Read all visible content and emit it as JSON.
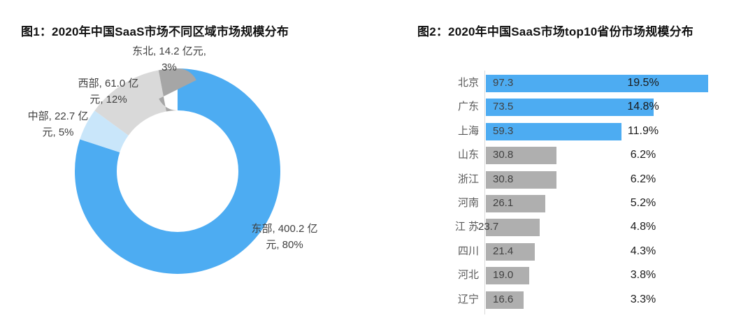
{
  "figure1": {
    "title": "图1：2020年中国SaaS市场不同区域市场规模分布",
    "unit": "亿元",
    "slices": [
      {
        "name": "东部",
        "value": 400.2,
        "pct": 80,
        "color": "#4DACF2",
        "label_line1": "东部, 400.2 亿",
        "label_line2": "元, 80%"
      },
      {
        "name": "中部",
        "value": 22.7,
        "pct": 5,
        "color": "#C9E6FA",
        "label_line1": "中部, 22.7 亿",
        "label_line2": "元, 5%"
      },
      {
        "name": "西部",
        "value": 61.0,
        "pct": 12,
        "color": "#D9D9D9",
        "label_line1": "西部, 61.0 亿",
        "label_line2": "元, 12%"
      },
      {
        "name": "东北",
        "value": 14.2,
        "pct": 3,
        "color": "#A6A6A6",
        "label_line1": "东北, 14.2 亿元,",
        "label_line2": "3%"
      }
    ]
  },
  "figure2": {
    "title": "图2：2020年中国SaaS市场top10省份市场规模分布",
    "max_value": 97.3,
    "rows": [
      {
        "label": "北京",
        "value": "97.3",
        "pct": "19.5%",
        "color": "#4DACF2"
      },
      {
        "label": "广东",
        "value": "73.5",
        "pct": "14.8%",
        "color": "#4DACF2"
      },
      {
        "label": "上海",
        "value": "59.3",
        "pct": "11.9%",
        "color": "#4DACF2"
      },
      {
        "label": "山东",
        "value": "30.8",
        "pct": "6.2%",
        "color": "#AFAFAF"
      },
      {
        "label": "浙江",
        "value": "30.8",
        "pct": "6.2%",
        "color": "#AFAFAF"
      },
      {
        "label": "河南",
        "value": "26.1",
        "pct": "5.2%",
        "color": "#AFAFAF"
      },
      {
        "label": "江 苏",
        "value": "23.7",
        "pct": "4.8%",
        "color": "#AFAFAF",
        "value_overflows_left": true
      },
      {
        "label": "四川",
        "value": "21.4",
        "pct": "4.3%",
        "color": "#AFAFAF"
      },
      {
        "label": "河北",
        "value": "19.0",
        "pct": "3.8%",
        "color": "#AFAFAF"
      },
      {
        "label": "辽宁",
        "value": "16.6",
        "pct": "3.3%",
        "color": "#AFAFAF"
      }
    ]
  },
  "colors": {
    "blue": "#4DACF2",
    "pale_blue": "#C9E6FA",
    "light_gray": "#D9D9D9",
    "dark_gray": "#A6A6A6",
    "bar_gray": "#AFAFAF",
    "axis": "#D9D9D9",
    "title_text": "#111111",
    "label_text": "#595959",
    "value_text": "#404040",
    "pct_text": "#1A1A1A"
  },
  "chart_data": [
    {
      "type": "pie",
      "subtype": "donut",
      "title": "图1：2020年中国SaaS市场不同区域市场规模分布",
      "categories": [
        "东部",
        "中部",
        "西部",
        "东北"
      ],
      "values": [
        400.2,
        22.7,
        61.0,
        14.2
      ],
      "percentages": [
        80,
        5,
        12,
        3
      ],
      "unit": "亿元",
      "colors": [
        "#4DACF2",
        "#C9E6FA",
        "#D9D9D9",
        "#A6A6A6"
      ],
      "start_angle": "top",
      "direction": "clockwise",
      "inner_radius_ratio": 0.59,
      "legend": "none",
      "data_labels": "outside, format: 名称, 值 亿元, 百分比"
    },
    {
      "type": "bar",
      "orientation": "horizontal",
      "title": "图2：2020年中国SaaS市场top10省份市场规模分布",
      "categories": [
        "北京",
        "广东",
        "上海",
        "山东",
        "浙江",
        "河南",
        "江苏",
        "四川",
        "河北",
        "辽宁"
      ],
      "values": [
        97.3,
        73.5,
        59.3,
        30.8,
        30.8,
        26.1,
        23.7,
        21.4,
        19.0,
        16.6
      ],
      "percentages": [
        19.5,
        14.8,
        11.9,
        6.2,
        6.2,
        5.2,
        4.8,
        4.3,
        3.8,
        3.3
      ],
      "bar_colors": [
        "#4DACF2",
        "#4DACF2",
        "#4DACF2",
        "#AFAFAF",
        "#AFAFAF",
        "#AFAFAF",
        "#AFAFAF",
        "#AFAFAF",
        "#AFAFAF",
        "#AFAFAF"
      ],
      "xlim": [
        0,
        100
      ],
      "grid": false,
      "legend": "none",
      "value_labels": "inside bar base",
      "percent_labels": "fixed column right of bars"
    }
  ]
}
